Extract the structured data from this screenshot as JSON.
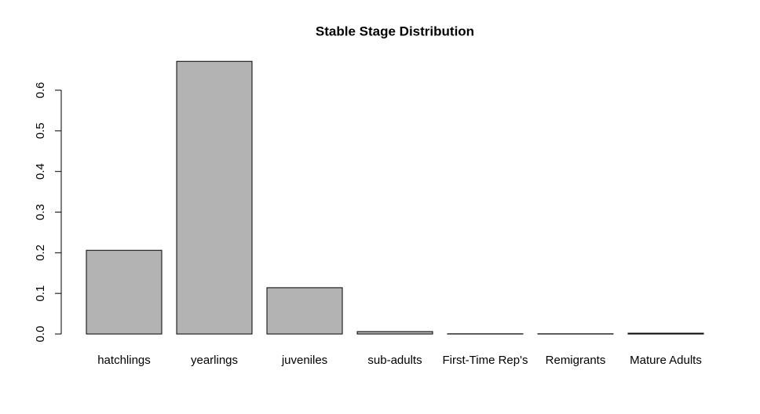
{
  "chart_data": {
    "type": "bar",
    "title": "Stable Stage Distribution",
    "categories": [
      "hatchlings",
      "yearlings",
      "juveniles",
      "sub-adults",
      "First-Time Rep's",
      "Remigrants",
      "Mature Adults"
    ],
    "values": [
      0.206,
      0.671,
      0.114,
      0.006,
      0.0005,
      0.0005,
      0.002
    ],
    "color": "#b3b3b3",
    "ylim": [
      0,
      0.69
    ],
    "yticks": [
      {
        "value": 0,
        "label": "0.0"
      },
      0.1,
      0.2,
      0.3,
      0.4,
      0.5,
      0.6
    ],
    "grid": false
  }
}
